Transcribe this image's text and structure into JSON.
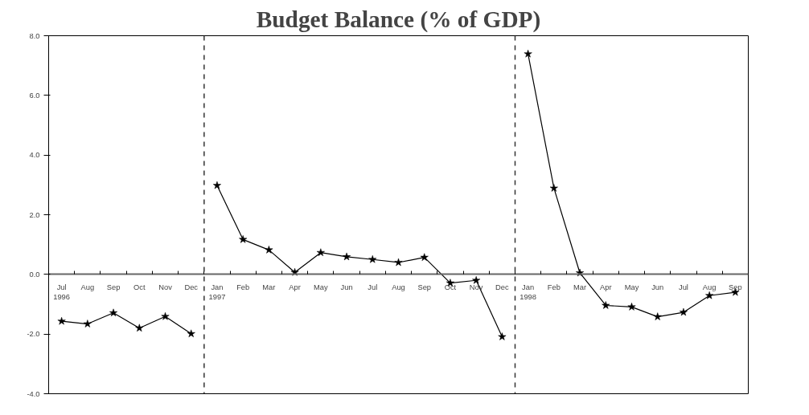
{
  "chart_data": {
    "type": "line",
    "title": "Budget Balance (% of GDP)",
    "categories": [
      "Jul\n1996",
      "Aug",
      "Sep",
      "Oct",
      "Nov",
      "Dec",
      "Jan\n1997",
      "Feb",
      "Mar",
      "Apr",
      "May",
      "Jun",
      "Jul",
      "Aug",
      "Sep",
      "Oct",
      "Nov",
      "Dec",
      "Jan\n1998",
      "Feb",
      "Mar",
      "Apr",
      "May",
      "Jun",
      "Jul",
      "Aug",
      "Sep"
    ],
    "series": [
      {
        "color": "#000000",
        "values": [
          -1.57,
          -1.66,
          -1.29,
          -1.8,
          -1.41,
          -1.99,
          null,
          null,
          null,
          null,
          null,
          null,
          null,
          null,
          null,
          null,
          null,
          null,
          null,
          null,
          null,
          null,
          null,
          null,
          null,
          null,
          null
        ]
      },
      {
        "color": "#000000",
        "values": [
          null,
          null,
          null,
          null,
          null,
          null,
          2.98,
          1.17,
          0.82,
          0.07,
          0.73,
          0.59,
          0.5,
          0.4,
          0.57,
          -0.29,
          -0.2,
          -2.09,
          null,
          null,
          null,
          null,
          null,
          null,
          null,
          null,
          null
        ]
      },
      {
        "color": "#000000",
        "values": [
          null,
          null,
          null,
          null,
          null,
          null,
          null,
          null,
          null,
          null,
          null,
          null,
          null,
          null,
          null,
          null,
          null,
          null,
          7.39,
          2.89,
          0.05,
          -1.04,
          -1.09,
          -1.42,
          -1.27,
          -0.71,
          -0.6
        ]
      }
    ],
    "ylim": [
      -4,
      8
    ],
    "yticks": [
      {
        "value": -4,
        "label": "-4.0"
      },
      {
        "value": -2,
        "label": "-2.0"
      },
      {
        "value": 0,
        "label": "0.0"
      },
      {
        "value": 2,
        "label": "2.0"
      },
      {
        "value": 4,
        "label": "4.0"
      },
      {
        "value": 6,
        "label": "6.0"
      },
      {
        "value": 8,
        "label": "8.0"
      }
    ],
    "marker": "star",
    "line_style": "solid",
    "grid": false
  }
}
